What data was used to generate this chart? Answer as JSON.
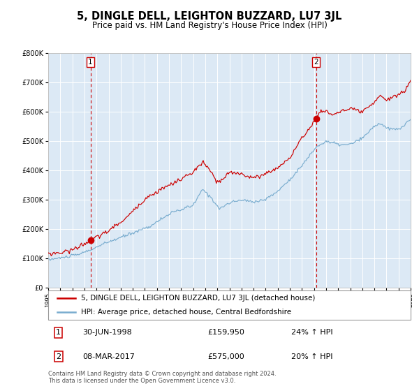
{
  "title": "5, DINGLE DELL, LEIGHTON BUZZARD, LU7 3JL",
  "subtitle": "Price paid vs. HM Land Registry's House Price Index (HPI)",
  "ylim": [
    0,
    800000
  ],
  "yticks": [
    0,
    100000,
    200000,
    300000,
    400000,
    500000,
    600000,
    700000,
    800000
  ],
  "ytick_labels": [
    "£0",
    "£100K",
    "£200K",
    "£300K",
    "£400K",
    "£500K",
    "£600K",
    "£700K",
    "£800K"
  ],
  "x_start_year": 1995,
  "x_end_year": 2025,
  "bg_color": "#dce9f5",
  "red_line_color": "#cc0000",
  "blue_line_color": "#7aadcf",
  "sale1_year": 1998.5,
  "sale1_price": 159950,
  "sale1_label": "1",
  "sale2_year": 2017.17,
  "sale2_price": 575000,
  "sale2_label": "2",
  "legend_red_label": "5, DINGLE DELL, LEIGHTON BUZZARD, LU7 3JL (detached house)",
  "legend_blue_label": "HPI: Average price, detached house, Central Bedfordshire",
  "annotation1_num": "1",
  "annotation1_date": "30-JUN-1998",
  "annotation1_price": "£159,950",
  "annotation1_hpi": "24% ↑ HPI",
  "annotation2_num": "2",
  "annotation2_date": "08-MAR-2017",
  "annotation2_price": "£575,000",
  "annotation2_hpi": "20% ↑ HPI",
  "footer": "Contains HM Land Registry data © Crown copyright and database right 2024.\nThis data is licensed under the Open Government Licence v3.0.",
  "title_fontsize": 10.5,
  "subtitle_fontsize": 8.5,
  "tick_fontsize": 7,
  "legend_fontsize": 7.5,
  "annotation_fontsize": 8,
  "footer_fontsize": 6
}
